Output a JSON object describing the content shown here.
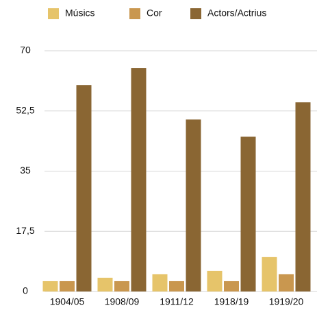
{
  "chart_data": {
    "type": "bar",
    "categories": [
      "1904/05",
      "1908/09",
      "1911/12",
      "1918/19",
      "1919/20"
    ],
    "series": [
      {
        "name": "Músics",
        "color": "#e6c46a",
        "values": [
          3,
          4,
          5,
          6,
          10
        ]
      },
      {
        "name": "Cor",
        "color": "#c9974f",
        "values": [
          3,
          3,
          3,
          3,
          5
        ]
      },
      {
        "name": "Actors/Actrius",
        "color": "#8a6633",
        "values": [
          60,
          65,
          50,
          45,
          55
        ]
      }
    ],
    "ylim": [
      0,
      70
    ],
    "yticks": [
      0,
      {
        "value": 17.5,
        "label": "17,5"
      },
      35,
      {
        "value": 52.5,
        "label": "52,5"
      },
      70
    ],
    "grid": true,
    "legend": "top"
  }
}
